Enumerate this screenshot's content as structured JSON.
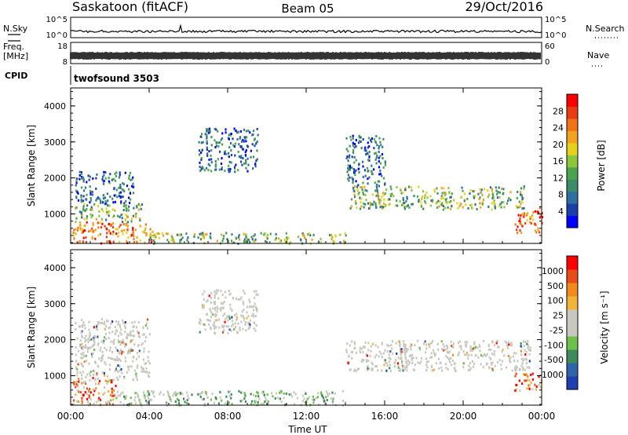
{
  "header": {
    "station": "Saskatoon (fitACF)",
    "beam": "Beam 05",
    "date": "29/Oct/2016"
  },
  "sidepanel": {
    "nsky_label": "N.Sky",
    "nsky_ticks": [
      "10^5",
      "10^0"
    ],
    "freq_label": "Freq.",
    "freq_unit": "[MHz]",
    "freq_ticks": [
      "18",
      "8"
    ],
    "cpid_label": "CPID",
    "nsearch_label": "N.Search",
    "nsearch_ticks": [
      "10^5",
      "10^0"
    ],
    "nave_label": "Nave",
    "nave_ticks": [
      "60",
      "0"
    ],
    "cpid_value": "twofsound 3503"
  },
  "chart_data": [
    {
      "type": "heatmap",
      "panel": "power",
      "ylabel": "Slant Range [km]",
      "yticks": [
        "4000",
        "3000",
        "2000",
        "1000"
      ],
      "ylim": [
        180,
        4500
      ],
      "xlim_hours": [
        0,
        24
      ],
      "colorbar": {
        "label": "Power [dB]",
        "ticks": [
          "28",
          "24",
          "20",
          "16",
          "12",
          "8",
          "4"
        ],
        "colors": [
          "#0000ff",
          "#1a3fa8",
          "#2f6f9e",
          "#3c8a6c",
          "#4ca34d",
          "#8cc63a",
          "#e6d21c",
          "#f2a21e",
          "#f07417",
          "#ea3b14",
          "#ff0000"
        ]
      },
      "echo_regions": [
        {
          "t": [
            0.1,
            4.2
          ],
          "r": [
            200,
            800
          ],
          "level": "high"
        },
        {
          "t": [
            0.2,
            3.6
          ],
          "r": [
            800,
            1300
          ],
          "level": "mid"
        },
        {
          "t": [
            0.2,
            3.2
          ],
          "r": [
            1300,
            2200
          ],
          "level": "low"
        },
        {
          "t": [
            4.0,
            14.0
          ],
          "r": [
            200,
            500
          ],
          "level": "mid"
        },
        {
          "t": [
            6.5,
            9.5
          ],
          "r": [
            2200,
            3400
          ],
          "level": "low"
        },
        {
          "t": [
            14.2,
            23.2
          ],
          "r": [
            1150,
            1800
          ],
          "level": "mid"
        },
        {
          "t": [
            14.0,
            16.0
          ],
          "r": [
            1800,
            3200
          ],
          "level": "low"
        },
        {
          "t": [
            22.6,
            24.0
          ],
          "r": [
            500,
            1200
          ],
          "level": "high"
        }
      ]
    },
    {
      "type": "heatmap",
      "panel": "velocity",
      "ylabel": "Slant Range [km]",
      "yticks": [
        "4000",
        "3000",
        "2000",
        "1000"
      ],
      "ylim": [
        180,
        4500
      ],
      "xlim_hours": [
        0,
        24
      ],
      "xticks": [
        "00:00",
        "04:00",
        "08:00",
        "12:00",
        "16:00",
        "20:00",
        "00:00"
      ],
      "xlabel": "Time UT",
      "colorbar": {
        "label": "Velocity [m s⁻¹]",
        "ticks": [
          "1000",
          "500",
          "100",
          "25",
          "-25",
          "-100",
          "-500",
          "-1000"
        ],
        "colors": [
          "#1f3fb0",
          "#2f64a8",
          "#3d8a5a",
          "#6fc04a",
          "#c8c8c0",
          "#c8c8c0",
          "#f2b33a",
          "#f08a1e",
          "#ea4c18",
          "#ff0000"
        ]
      },
      "echo_regions": [
        {
          "t": [
            0.1,
            2.4
          ],
          "r": [
            200,
            900
          ],
          "level": "orange"
        },
        {
          "t": [
            0.2,
            4.0
          ],
          "r": [
            900,
            2600
          ],
          "level": "grey"
        },
        {
          "t": [
            2.0,
            14.0
          ],
          "r": [
            200,
            600
          ],
          "level": "green"
        },
        {
          "t": [
            6.5,
            9.5
          ],
          "r": [
            2200,
            3400
          ],
          "level": "grey"
        },
        {
          "t": [
            14.0,
            23.4
          ],
          "r": [
            1150,
            2000
          ],
          "level": "grey"
        },
        {
          "t": [
            22.6,
            24.0
          ],
          "r": [
            600,
            1100
          ],
          "level": "orange"
        }
      ]
    }
  ]
}
